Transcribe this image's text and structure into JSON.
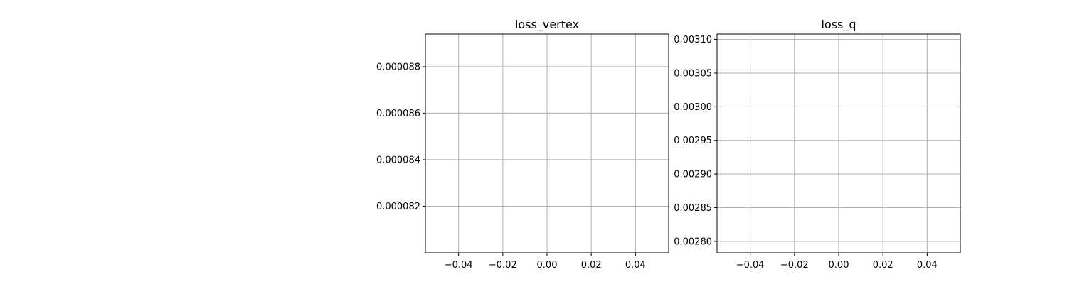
{
  "chart_data": [
    {
      "type": "line",
      "title": "loss_vertex",
      "xlabel": "",
      "ylabel": "",
      "xlim": [
        -0.055,
        0.055
      ],
      "ylim": [
        8e-05,
        8.94e-05
      ],
      "xticks": [
        -0.04,
        -0.02,
        0.0,
        0.02,
        0.04
      ],
      "xtick_labels": [
        "−0.04",
        "−0.02",
        "0.00",
        "0.02",
        "0.04"
      ],
      "yticks": [
        8.2e-05,
        8.4e-05,
        8.6e-05,
        8.8e-05
      ],
      "ytick_labels": [
        "0.000082",
        "0.000084",
        "0.000086",
        "0.000088"
      ],
      "grid": true,
      "series": []
    },
    {
      "type": "line",
      "title": "loss_q",
      "xlabel": "",
      "ylabel": "",
      "xlim": [
        -0.055,
        0.055
      ],
      "ylim": [
        0.002783,
        0.003108
      ],
      "xticks": [
        -0.04,
        -0.02,
        0.0,
        0.02,
        0.04
      ],
      "xtick_labels": [
        "−0.04",
        "−0.02",
        "0.00",
        "0.02",
        "0.04"
      ],
      "yticks": [
        0.0028,
        0.00285,
        0.0029,
        0.00295,
        0.003,
        0.00305,
        0.0031
      ],
      "ytick_labels": [
        "0.00280",
        "0.00285",
        "0.00290",
        "0.00295",
        "0.00300",
        "0.00305",
        "0.00310"
      ],
      "grid": true,
      "series": []
    }
  ],
  "colors": {
    "grid": "#b0b0b0",
    "axes": "#000000",
    "background": "#ffffff"
  }
}
